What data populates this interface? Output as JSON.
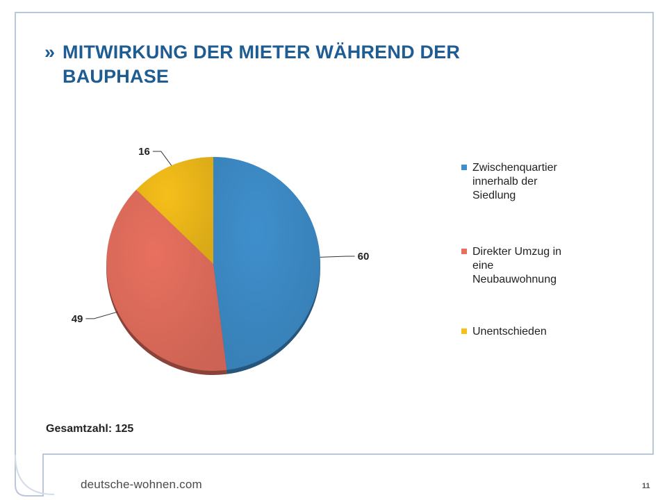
{
  "slide": {
    "title_marker": "»",
    "title_line1": "MITWIRKUNG DER MIETER WÄHREND DER",
    "title_line2": "BAUPHASE",
    "total_text": "Gesamtzahl: 125",
    "footer_logo": "deutsche-wohnen.com",
    "page_number": "11"
  },
  "colors": {
    "title": "#1f5c92",
    "frame": "#b8c7d9",
    "series": [
      "#3f8fcd",
      "#e8705f",
      "#f6bf1a"
    ]
  },
  "chart_data": {
    "type": "pie",
    "style": "3d",
    "categories": [
      "Zwischenquartier innerhalb der Siedlung",
      "Direkter Umzug in eine Neubauwohnung",
      "Unentschieden"
    ],
    "values": [
      60,
      49,
      16
    ],
    "data_labels": [
      "60",
      "49",
      "16"
    ],
    "legend_position": "right",
    "legend": {
      "items": [
        {
          "lines": [
            "Zwischenquartier",
            "innerhalb der",
            "Siedlung"
          ]
        },
        {
          "lines": [
            "Direkter Umzug in",
            "eine",
            "Neubauwohnung"
          ]
        },
        {
          "lines": [
            "Unentschieden"
          ]
        }
      ]
    }
  }
}
